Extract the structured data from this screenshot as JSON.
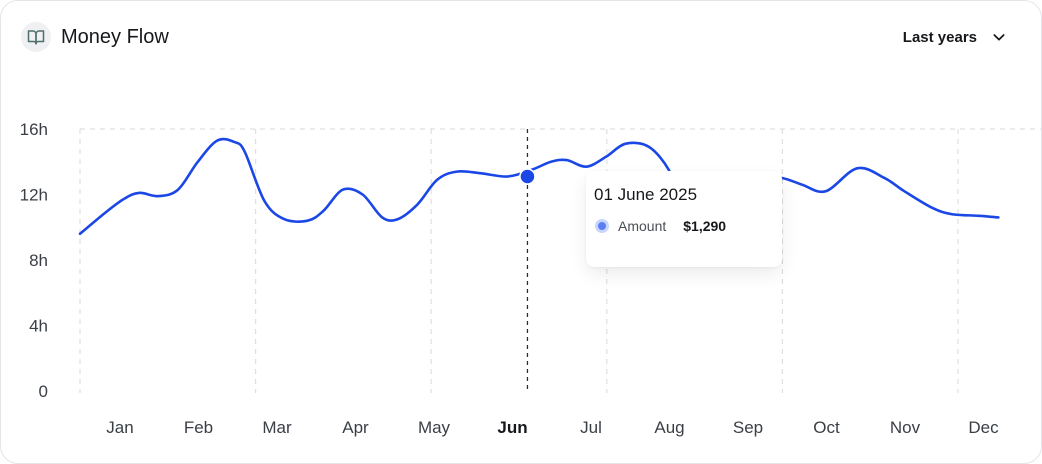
{
  "header": {
    "title": "Money Flow",
    "title_icon": "book-open-icon",
    "period_label": "Last years",
    "period_icon": "chevron-down-icon"
  },
  "tooltip": {
    "date": "01 June 2025",
    "series_label": "Amount",
    "value": "$1,290"
  },
  "colors": {
    "line": "#1a47e6",
    "tooltip_dot": "#5b7ef5",
    "grid": "#dedfe2",
    "label": "#3a3f45"
  },
  "chart_data": {
    "type": "line",
    "categories": [
      "Jan",
      "Feb",
      "Mar",
      "Apr",
      "May",
      "Jun",
      "Jul",
      "Aug",
      "Sep",
      "Oct",
      "Nov",
      "Dec"
    ],
    "highlighted_category": "Jun",
    "y_ticks": [
      "0",
      "4h",
      "8h",
      "12h",
      "16h"
    ],
    "ylim": [
      0,
      16
    ],
    "grid": true,
    "x": [
      0.0,
      0.3,
      0.55,
      0.75,
      1.0,
      1.25,
      1.5,
      1.75,
      1.97,
      2.1,
      2.35,
      2.6,
      2.9,
      3.1,
      3.35,
      3.6,
      3.85,
      4.05,
      4.3,
      4.55,
      4.8,
      5.1,
      5.45,
      5.75,
      6.0,
      6.2,
      6.45,
      6.7,
      6.95,
      7.25,
      7.5,
      7.6,
      7.85,
      8.1,
      8.35,
      8.65,
      8.95,
      9.2,
      9.5,
      9.9,
      10.25,
      10.5,
      10.85,
      11.1,
      11.45,
      11.7
    ],
    "values": [
      9.6,
      10.8,
      11.7,
      12.1,
      11.9,
      12.3,
      14.0,
      15.3,
      15.2,
      14.6,
      11.6,
      10.5,
      10.4,
      11.0,
      12.3,
      12.0,
      10.6,
      10.5,
      11.4,
      12.9,
      13.4,
      13.3,
      13.1,
      13.5,
      14.0,
      14.1,
      13.7,
      14.3,
      15.1,
      14.9,
      13.5,
      11.9,
      11.3,
      11.5,
      12.2,
      13.1,
      13.0,
      12.6,
      12.2,
      13.6,
      13.0,
      12.2,
      11.2,
      10.8,
      10.7,
      10.6
    ],
    "highlight_point": {
      "x": 5.7,
      "y": 13.1
    }
  }
}
